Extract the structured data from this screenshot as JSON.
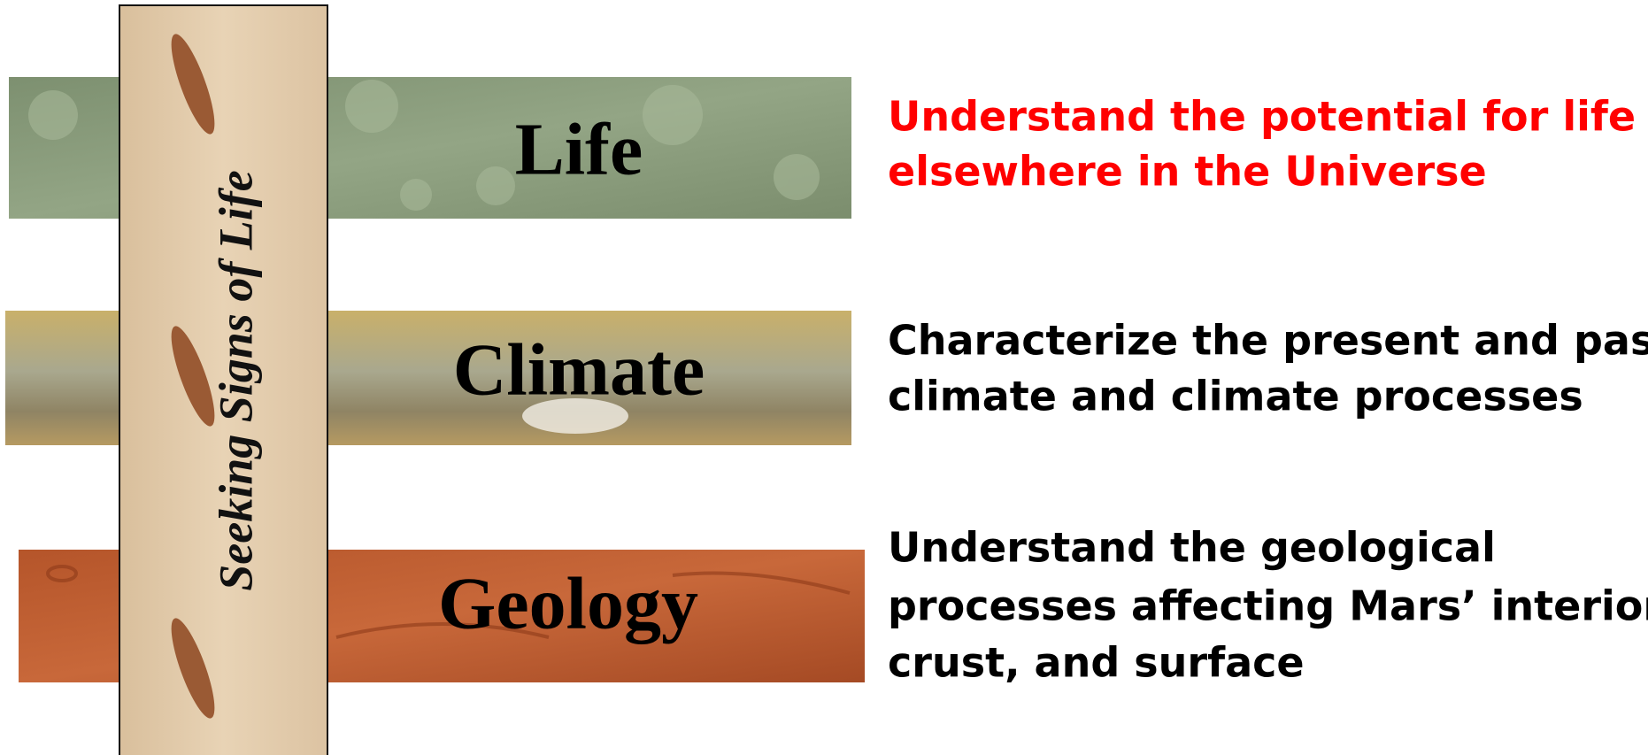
{
  "banner": "Seeking Signs of Life",
  "rows": [
    {
      "label": "Life",
      "lines": [
        "Understand the potential for life",
        "elsewhere in the Universe"
      ],
      "color": "#ff0000"
    },
    {
      "label": "Climate",
      "lines": [
        "Characterize the present and past",
        "climate and climate processes"
      ],
      "color": "#000000"
    },
    {
      "label": "Geology",
      "lines": [
        "Understand the geological",
        "processes affecting Mars’ interior,",
        "crust, and surface"
      ],
      "color": "#000000"
    }
  ]
}
